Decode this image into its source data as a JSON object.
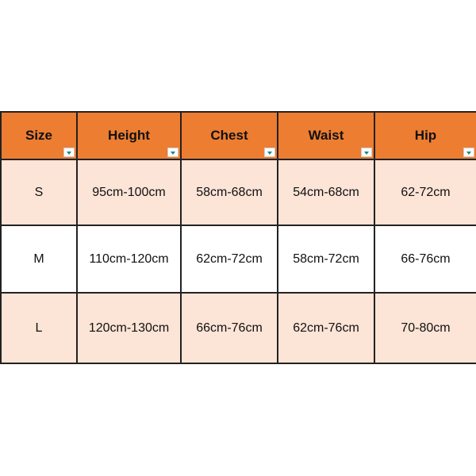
{
  "colors": {
    "header": "#ED7D31",
    "row_alt": "#FCE4D6",
    "filter_arrow": "#1a8a7a"
  },
  "headers": [
    "Size",
    "Height",
    "Chest",
    "Waist",
    "Hip"
  ],
  "rows": [
    [
      "S",
      "95cm-100cm",
      "58cm-68cm",
      "54cm-68cm",
      "62-72cm"
    ],
    [
      "M",
      "110cm-120cm",
      "62cm-72cm",
      "58cm-72cm",
      "66-76cm"
    ],
    [
      "L",
      "120cm-130cm",
      "66cm-76cm",
      "62cm-76cm",
      "70-80cm"
    ]
  ]
}
